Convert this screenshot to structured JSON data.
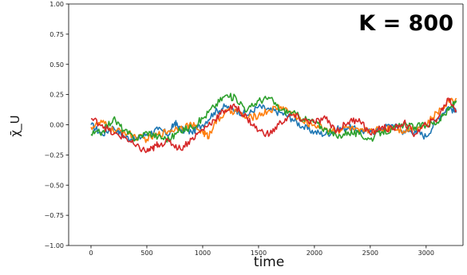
{
  "chart_data": {
    "type": "line",
    "title": "",
    "annotation": "K = 800",
    "xlabel": "time",
    "ylabel": "χ̄_U",
    "xlim": [
      -200,
      3330
    ],
    "ylim": [
      -1.0,
      1.0
    ],
    "xticks": [
      0,
      500,
      1000,
      1500,
      2000,
      2500,
      3000
    ],
    "yticks": [
      -1.0,
      -0.75,
      -0.5,
      -0.25,
      0.0,
      0.25,
      0.5,
      0.75,
      1.0
    ],
    "ytick_labels": [
      "−1.00",
      "−0.75",
      "−0.50",
      "−0.25",
      "0.00",
      "0.25",
      "0.50",
      "0.75",
      "1.00"
    ],
    "xtick_labels": [
      "0",
      "500",
      "1000",
      "1500",
      "2000",
      "2500",
      "3000"
    ],
    "grid": false,
    "series": [
      {
        "color": "#1f77b4",
        "x": [
          0,
          100,
          200,
          300,
          400,
          500,
          600,
          700,
          750,
          800,
          900,
          1000,
          1100,
          1200,
          1300,
          1400,
          1500,
          1600,
          1700,
          1800,
          1900,
          2000,
          2100,
          2200,
          2300,
          2400,
          2500,
          2600,
          2700,
          2800,
          2900,
          3000,
          3100,
          3200,
          3270
        ],
        "y": [
          0.0,
          -0.08,
          -0.02,
          -0.1,
          -0.12,
          -0.08,
          -0.04,
          -0.08,
          0.02,
          -0.04,
          -0.06,
          0.0,
          0.1,
          0.15,
          0.12,
          0.08,
          0.15,
          0.12,
          0.1,
          0.05,
          -0.02,
          -0.06,
          -0.08,
          -0.04,
          -0.02,
          -0.05,
          -0.06,
          -0.03,
          0.0,
          -0.06,
          -0.05,
          -0.1,
          0.05,
          0.15,
          0.1
        ]
      },
      {
        "color": "#ff7f0e",
        "x": [
          0,
          100,
          200,
          300,
          400,
          500,
          600,
          700,
          800,
          900,
          1000,
          1050,
          1100,
          1200,
          1300,
          1400,
          1500,
          1600,
          1700,
          1800,
          1900,
          2000,
          2100,
          2200,
          2300,
          2400,
          2500,
          2600,
          2700,
          2800,
          2900,
          3000,
          3100,
          3200,
          3270
        ],
        "y": [
          -0.02,
          0.02,
          -0.05,
          -0.06,
          -0.1,
          -0.12,
          -0.08,
          -0.05,
          -0.02,
          0.0,
          -0.06,
          -0.1,
          0.0,
          0.1,
          0.12,
          0.05,
          0.08,
          0.12,
          0.15,
          0.1,
          0.02,
          0.0,
          -0.03,
          -0.05,
          -0.02,
          -0.06,
          -0.04,
          -0.04,
          -0.02,
          -0.05,
          -0.02,
          0.0,
          0.1,
          0.2,
          0.22
        ]
      },
      {
        "color": "#2ca02c",
        "x": [
          0,
          100,
          200,
          300,
          400,
          500,
          600,
          700,
          800,
          900,
          1000,
          1100,
          1200,
          1300,
          1400,
          1500,
          1600,
          1700,
          1800,
          1900,
          2000,
          2100,
          2200,
          2300,
          2400,
          2500,
          2600,
          2700,
          2800,
          2900,
          3000,
          3100,
          3200,
          3270
        ],
        "y": [
          -0.08,
          -0.06,
          0.05,
          -0.05,
          -0.12,
          -0.06,
          -0.1,
          -0.12,
          -0.05,
          -0.02,
          0.05,
          0.15,
          0.24,
          0.22,
          0.12,
          0.2,
          0.22,
          0.12,
          0.1,
          0.05,
          0.02,
          -0.04,
          -0.1,
          -0.06,
          -0.08,
          -0.12,
          -0.06,
          -0.04,
          0.0,
          -0.02,
          0.0,
          0.02,
          0.12,
          0.2
        ]
      },
      {
        "color": "#d62728",
        "x": [
          0,
          100,
          200,
          300,
          400,
          500,
          550,
          600,
          700,
          800,
          900,
          1000,
          1100,
          1200,
          1300,
          1400,
          1500,
          1600,
          1700,
          1800,
          1900,
          2000,
          2100,
          2200,
          2300,
          2400,
          2500,
          2600,
          2700,
          2800,
          2900,
          3000,
          3100,
          3200,
          3270
        ],
        "y": [
          0.05,
          0.0,
          -0.08,
          -0.1,
          -0.18,
          -0.22,
          -0.2,
          -0.16,
          -0.14,
          -0.2,
          -0.12,
          -0.04,
          0.04,
          0.12,
          0.15,
          0.05,
          -0.05,
          -0.08,
          0.02,
          0.08,
          0.04,
          0.02,
          0.05,
          -0.05,
          0.02,
          0.05,
          -0.08,
          -0.02,
          -0.04,
          0.02,
          -0.08,
          0.0,
          0.05,
          0.22,
          0.12
        ]
      }
    ]
  }
}
